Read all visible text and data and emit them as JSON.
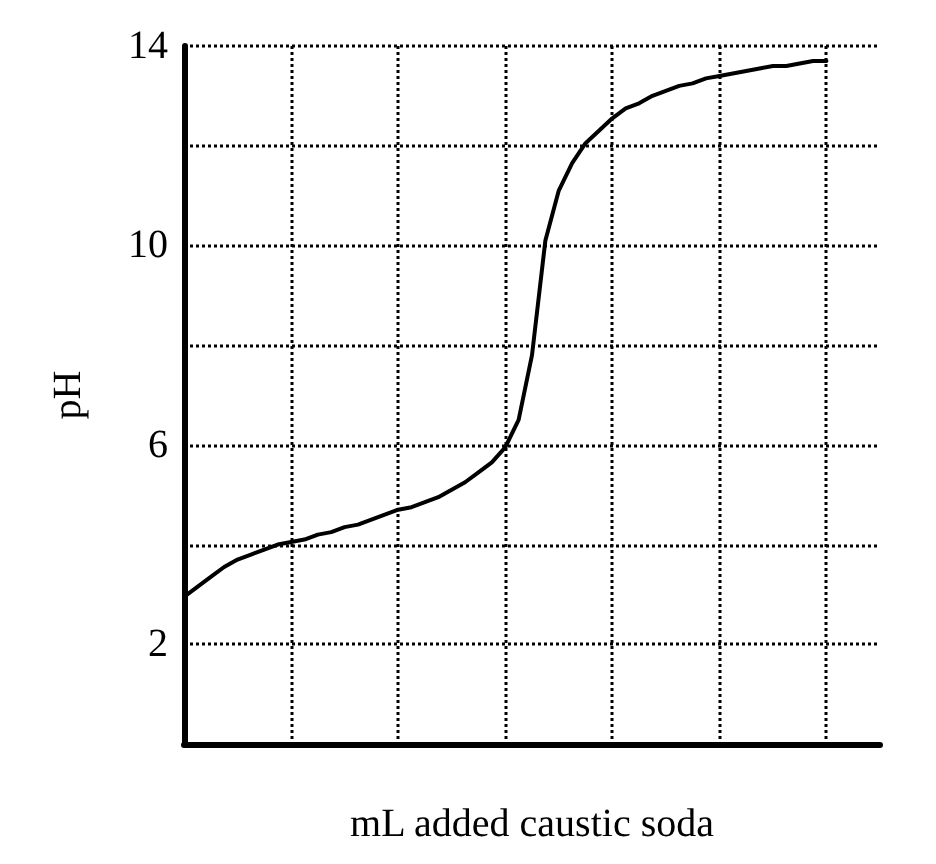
{
  "chart_data": {
    "type": "line",
    "xlabel": "mL added caustic soda",
    "ylabel": "pH",
    "categories": [
      null,
      null,
      null,
      null,
      null,
      null,
      null,
      null,
      null,
      null,
      null,
      null,
      null,
      null,
      null,
      null,
      null,
      null,
      null,
      null,
      null,
      null,
      null,
      null,
      null,
      null,
      null,
      null,
      null,
      null,
      null,
      null,
      null,
      null,
      null,
      null,
      null,
      null,
      null,
      null,
      null,
      null,
      null,
      null,
      null,
      null,
      null,
      null,
      null,
      null,
      null,
      null,
      null
    ],
    "series": [
      {
        "color": "#000000",
        "values": [
          2.95,
          3.15,
          3.35,
          3.55,
          3.7,
          3.8,
          3.9,
          4.0,
          4.05,
          4.1,
          4.2,
          4.25,
          4.35,
          4.4,
          4.5,
          4.6,
          4.7,
          4.75,
          4.85,
          4.95,
          5.1,
          5.25,
          5.45,
          5.65,
          5.95,
          6.5,
          7.8,
          10.1,
          11.1,
          11.65,
          12.05,
          12.3,
          12.55,
          12.75,
          12.85,
          13.0,
          13.1,
          13.2,
          13.25,
          13.35,
          13.4,
          13.45,
          13.5,
          13.55,
          13.6,
          13.6,
          13.65,
          13.7,
          13.7,
          null,
          null,
          null,
          null
        ]
      }
    ],
    "ylim": [
      0,
      14
    ],
    "yticks": [
      {
        "value": 0,
        "label": null
      },
      2,
      {
        "value": 4,
        "label": null
      },
      6,
      {
        "value": 8,
        "label": null
      },
      10,
      {
        "value": 12,
        "label": null
      },
      14
    ],
    "grid": true,
    "marker": "none",
    "line_style": "solid"
  }
}
